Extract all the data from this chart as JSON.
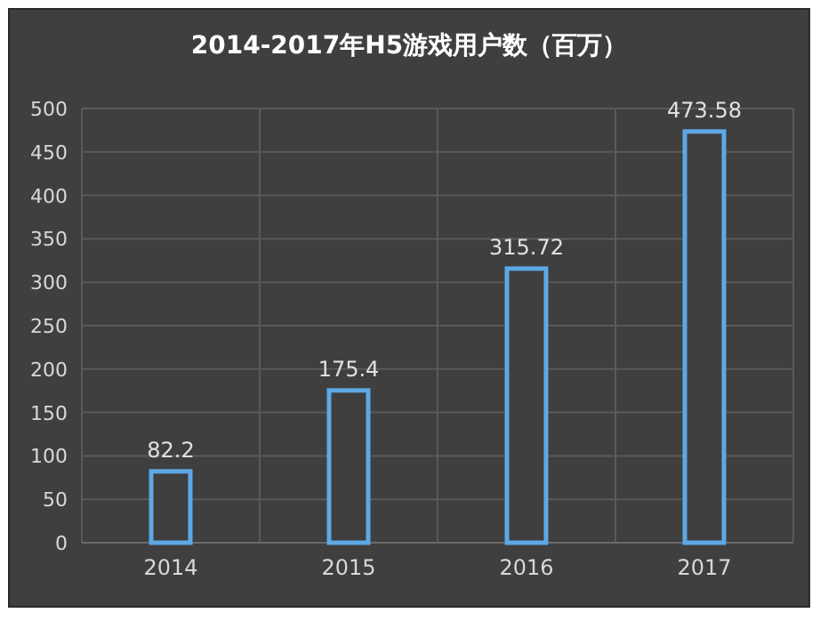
{
  "chart_data": {
    "type": "bar",
    "title": "2014-2017年H5游戏用户数（百万）",
    "categories": [
      "2014",
      "2015",
      "2016",
      "2017"
    ],
    "values": [
      82.2,
      175.4,
      315.72,
      473.58
    ],
    "color": "#5ea8e6",
    "ylim": [
      0,
      500
    ],
    "yticks": [
      0,
      50,
      100,
      150,
      200,
      250,
      300,
      350,
      400,
      450,
      500
    ],
    "grid": true,
    "data_labels": true
  }
}
